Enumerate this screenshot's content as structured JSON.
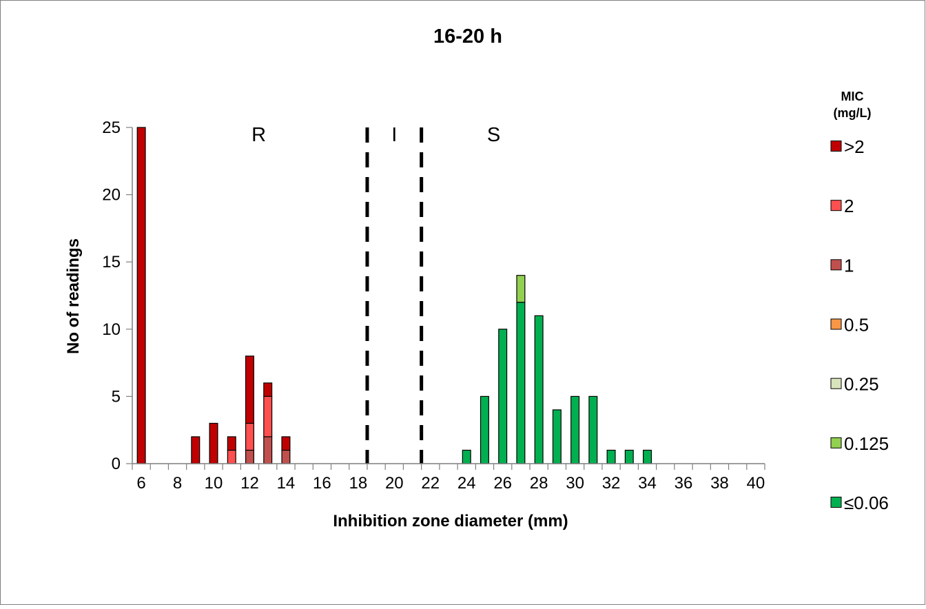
{
  "chart_data": {
    "type": "bar",
    "stacked": true,
    "title": "16-20 h",
    "xlabel": "Inhibition zone diameter (mm)",
    "ylabel": "No of readings",
    "x": [
      6,
      7,
      8,
      9,
      10,
      11,
      12,
      13,
      14,
      15,
      16,
      17,
      18,
      19,
      20,
      21,
      22,
      23,
      24,
      25,
      26,
      27,
      28,
      29,
      30,
      31,
      32,
      33,
      34,
      35,
      36,
      37,
      38,
      39,
      40
    ],
    "xticks": [
      "6",
      "8",
      "10",
      "12",
      "14",
      "16",
      "18",
      "20",
      "22",
      "24",
      "26",
      "28",
      "30",
      "32",
      "34",
      "36",
      "38",
      "40"
    ],
    "ylim": [
      0,
      25
    ],
    "yticks": [
      "0",
      "5",
      "10",
      "15",
      "20",
      "25"
    ],
    "legend_title": "MIC (mg/L)",
    "legend_title_lines": [
      "MIC",
      "(mg/L)"
    ],
    "legend_position": "right",
    "series": [
      {
        "name": "≤0.06",
        "color": "#00b050",
        "values": [
          0,
          0,
          0,
          0,
          0,
          0,
          0,
          0,
          0,
          0,
          0,
          0,
          0,
          0,
          0,
          0,
          0,
          0,
          1,
          5,
          10,
          12,
          11,
          4,
          5,
          5,
          1,
          1,
          1,
          0,
          0,
          0,
          0,
          0,
          0
        ]
      },
      {
        "name": "0.125",
        "color": "#92d050",
        "values": [
          0,
          0,
          0,
          0,
          0,
          0,
          0,
          0,
          0,
          0,
          0,
          0,
          0,
          0,
          0,
          0,
          0,
          0,
          0,
          0,
          0,
          2,
          0,
          0,
          0,
          0,
          0,
          0,
          0,
          0,
          0,
          0,
          0,
          0,
          0
        ]
      },
      {
        "name": "0.25",
        "color": "#d8e4bc",
        "values": [
          0,
          0,
          0,
          0,
          0,
          0,
          0,
          0,
          0,
          0,
          0,
          0,
          0,
          0,
          0,
          0,
          0,
          0,
          0,
          0,
          0,
          0,
          0,
          0,
          0,
          0,
          0,
          0,
          0,
          0,
          0,
          0,
          0,
          0,
          0
        ]
      },
      {
        "name": "0.5",
        "color": "#f79646",
        "values": [
          0,
          0,
          0,
          0,
          0,
          0,
          0,
          0,
          0,
          0,
          0,
          0,
          0,
          0,
          0,
          0,
          0,
          0,
          0,
          0,
          0,
          0,
          0,
          0,
          0,
          0,
          0,
          0,
          0,
          0,
          0,
          0,
          0,
          0,
          0
        ]
      },
      {
        "name": "1",
        "color": "#c0504d",
        "values": [
          0,
          0,
          0,
          0,
          0,
          0,
          1,
          2,
          1,
          0,
          0,
          0,
          0,
          0,
          0,
          0,
          0,
          0,
          0,
          0,
          0,
          0,
          0,
          0,
          0,
          0,
          0,
          0,
          0,
          0,
          0,
          0,
          0,
          0,
          0
        ]
      },
      {
        "name": "2",
        "color": "#ff5050",
        "values": [
          0,
          0,
          0,
          0,
          0,
          1,
          2,
          3,
          0,
          0,
          0,
          0,
          0,
          0,
          0,
          0,
          0,
          0,
          0,
          0,
          0,
          0,
          0,
          0,
          0,
          0,
          0,
          0,
          0,
          0,
          0,
          0,
          0,
          0,
          0
        ]
      },
      {
        "name": ">2",
        "color": "#c00000",
        "values": [
          25,
          0,
          0,
          2,
          3,
          1,
          5,
          1,
          1,
          0,
          0,
          0,
          0,
          0,
          0,
          0,
          0,
          0,
          0,
          0,
          0,
          0,
          0,
          0,
          0,
          0,
          0,
          0,
          0,
          0,
          0,
          0,
          0,
          0,
          0
        ]
      }
    ],
    "breakpoints": [
      18.5,
      21.5
    ],
    "zones": [
      {
        "label": "R",
        "x": 12.5
      },
      {
        "label": "I",
        "x": 20
      },
      {
        "label": "S",
        "x": 25.5
      }
    ],
    "grid": false
  }
}
